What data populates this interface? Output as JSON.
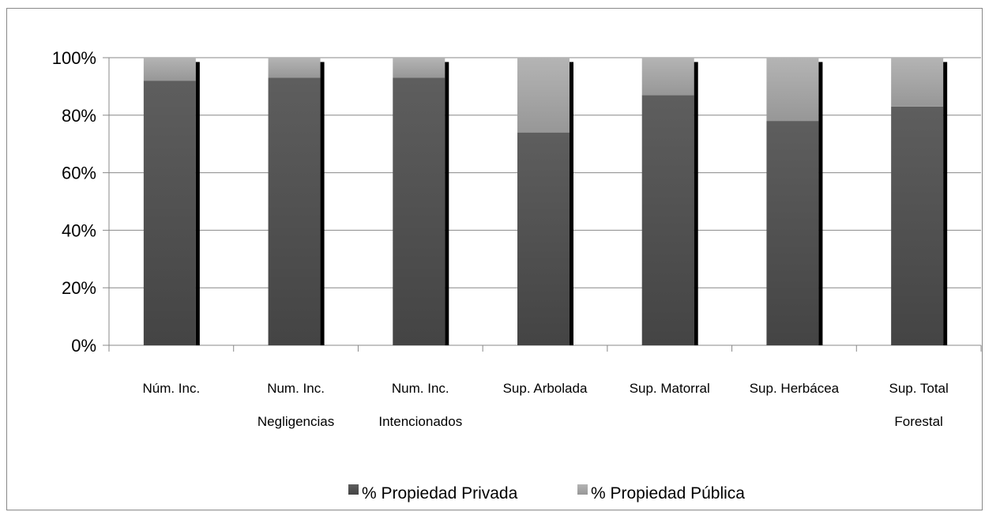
{
  "chart_data": {
    "type": "bar",
    "stacked": true,
    "normalized": true,
    "categories": [
      [
        "Núm. Inc."
      ],
      [
        "Num. Inc.",
        "Negligencias"
      ],
      [
        "Num. Inc.",
        "Intencionados"
      ],
      [
        "Sup. Arbolada"
      ],
      [
        "Sup. Matorral"
      ],
      [
        "Sup. Herbácea"
      ],
      [
        "Sup. Total",
        "Forestal"
      ]
    ],
    "series": [
      {
        "name": "% Propiedad Privada",
        "color": "#4f4f4f",
        "values": [
          92,
          93,
          93,
          74,
          87,
          78,
          83
        ]
      },
      {
        "name": "% Propiedad Pública",
        "color": "#a6a6a6",
        "values": [
          8,
          7,
          7,
          26,
          13,
          22,
          17
        ]
      }
    ],
    "y_ticks": [
      "0%",
      "20%",
      "40%",
      "60%",
      "80%",
      "100%"
    ],
    "ylim": [
      0,
      100
    ],
    "grid": true,
    "legend_position": "bottom"
  }
}
